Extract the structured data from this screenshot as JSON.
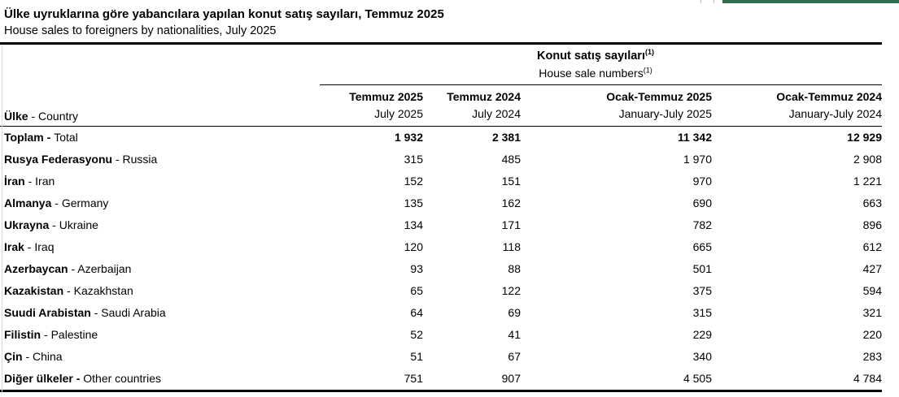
{
  "header": {
    "title_tr": "Ülke uyruklarına göre yabancılara yapılan konut satış sayıları, Temmuz 2025",
    "title_en": "House sales to foreigners by nationalities, July 2025"
  },
  "table": {
    "span_header_tr": "Konut satış sayıları",
    "span_header_en": "House sale numbers",
    "footnote": "(1)",
    "country_header": {
      "tr": "Ülke",
      "sep": " - ",
      "en": "Country"
    },
    "columns": [
      {
        "tr": "Temmuz 2025",
        "en": "July 2025"
      },
      {
        "tr": "Temmuz 2024",
        "en": "July 2024"
      },
      {
        "tr": "Ocak-Temmuz 2025",
        "en": "January-July 2025"
      },
      {
        "tr": "Ocak-Temmuz 2024",
        "en": "January-July 2024"
      }
    ],
    "rows": [
      {
        "tr": "Toplam",
        "sep": " - ",
        "en": "Total",
        "style": "total",
        "values": [
          "1 932",
          "2 381",
          "11 342",
          "12 929"
        ]
      },
      {
        "tr": "Rusya Federasyonu",
        "sep": " - ",
        "en": "Russia",
        "style": "normal",
        "values": [
          "315",
          "485",
          "1 970",
          "2 908"
        ]
      },
      {
        "tr": "İran",
        "sep": " - ",
        "en": "Iran",
        "style": "normal",
        "values": [
          "152",
          "151",
          "970",
          "1 221"
        ]
      },
      {
        "tr": "Almanya",
        "sep": " - ",
        "en": "Germany",
        "style": "normal",
        "values": [
          "135",
          "162",
          "690",
          "663"
        ]
      },
      {
        "tr": "Ukrayna",
        "sep": " - ",
        "en": "Ukraine",
        "style": "normal",
        "values": [
          "134",
          "171",
          "782",
          "896"
        ]
      },
      {
        "tr": "Irak",
        "sep": " - ",
        "en": "Iraq",
        "style": "normal",
        "values": [
          "120",
          "118",
          "665",
          "612"
        ]
      },
      {
        "tr": "Azerbaycan",
        "sep": " - ",
        "en": "Azerbaijan",
        "style": "normal",
        "values": [
          "93",
          "88",
          "501",
          "427"
        ]
      },
      {
        "tr": "Kazakistan",
        "sep": " - ",
        "en": "Kazakhstan",
        "style": "normal",
        "values": [
          "65",
          "122",
          "375",
          "594"
        ]
      },
      {
        "tr": "Suudi Arabistan",
        "sep": " - ",
        "en": "Saudi Arabia",
        "style": "normal",
        "values": [
          "64",
          "69",
          "315",
          "321"
        ]
      },
      {
        "tr": "Filistin",
        "sep": " - ",
        "en": "Palestine",
        "style": "normal",
        "values": [
          "52",
          "41",
          "229",
          "220"
        ]
      },
      {
        "tr": "Çin",
        "sep": " - ",
        "en": "China",
        "style": "normal",
        "values": [
          "51",
          "67",
          "340",
          "283"
        ]
      },
      {
        "tr": "Diğer ülkeler",
        "sep": " - ",
        "en": "Other countries",
        "style": "boldsep",
        "values": [
          "751",
          "907",
          "4 505",
          "4 784"
        ]
      }
    ]
  },
  "colors": {
    "accent_green": "#2e6e4e",
    "rule_black": "#000000",
    "gridline_gray": "#dcdcdc"
  }
}
